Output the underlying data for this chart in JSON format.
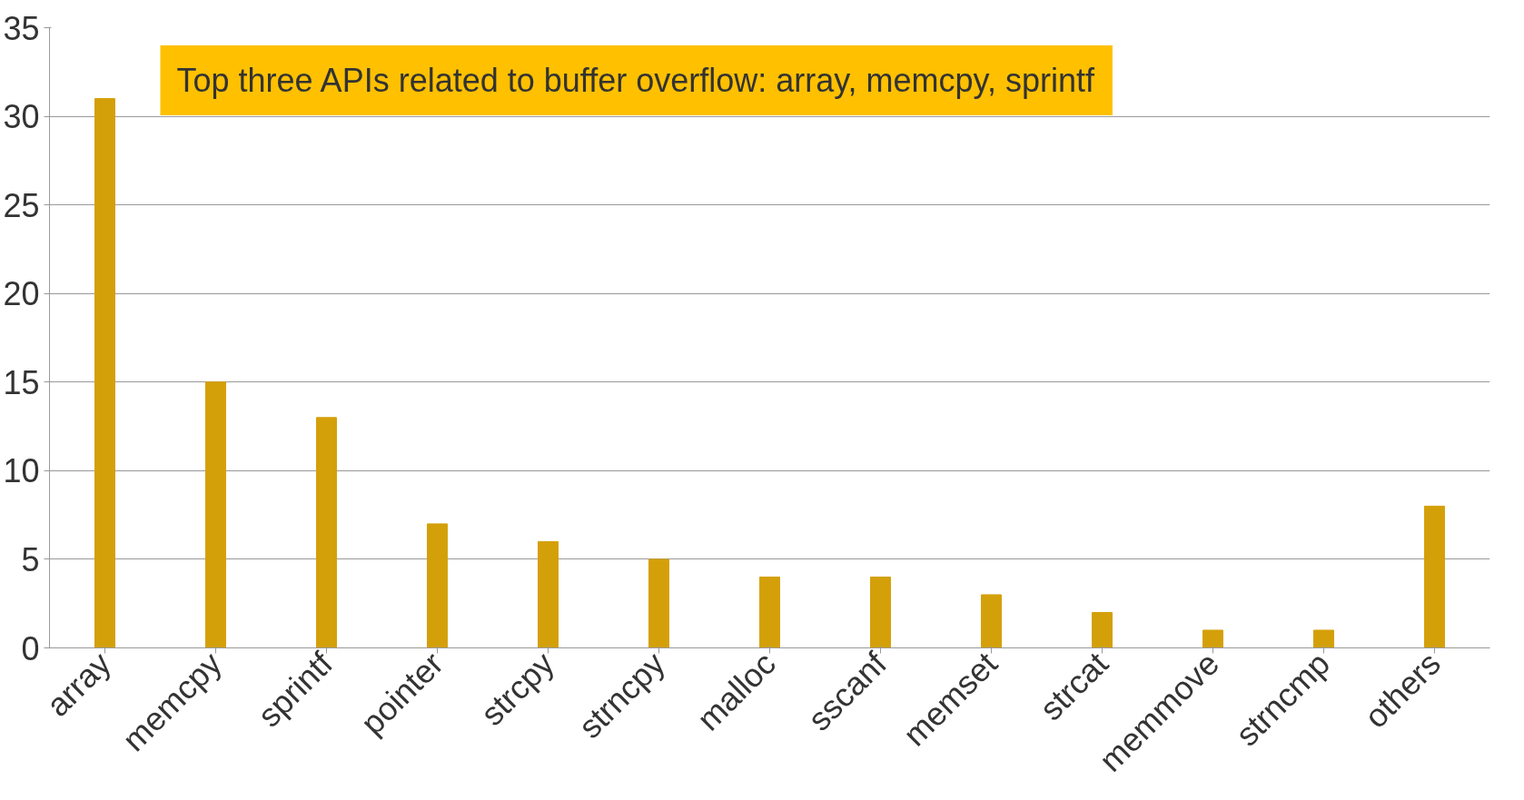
{
  "chart_data": {
    "type": "bar",
    "categories": [
      "array",
      "memcpy",
      "sprintf",
      "pointer",
      "strcpy",
      "strncpy",
      "malloc",
      "sscanf",
      "memset",
      "strcat",
      "memmove",
      "strncmp",
      "others"
    ],
    "values": [
      31,
      15,
      13,
      7,
      6,
      5,
      4,
      4,
      3,
      2,
      1,
      1,
      8
    ],
    "color": "#d4a00a",
    "ylim": [
      0,
      35
    ],
    "yticks": [
      0,
      5,
      10,
      15,
      20,
      25,
      30,
      35
    ],
    "grid": "y",
    "annotations": [
      "Top three APIs related to buffer overflow: array, memcpy, sprintf"
    ]
  }
}
